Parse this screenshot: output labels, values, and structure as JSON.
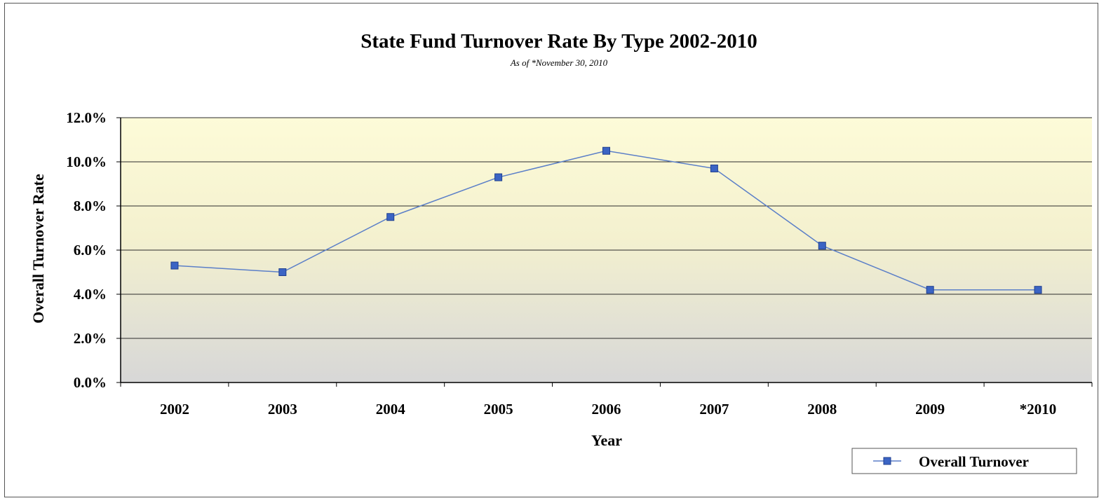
{
  "chart_data": {
    "type": "line",
    "title": "State Fund Turnover Rate By Type 2002-2010",
    "subtitle": "As of *November 30, 2010",
    "xlabel": "Year",
    "ylabel": "Overall Turnover Rate",
    "categories": [
      "2002",
      "2003",
      "2004",
      "2005",
      "2006",
      "2007",
      "2008",
      "2009",
      "*2010"
    ],
    "series": [
      {
        "name": "Overall Turnover",
        "values": [
          5.3,
          5.0,
          7.5,
          9.3,
          10.5,
          9.7,
          6.2,
          4.2,
          4.2
        ]
      }
    ],
    "ylim": [
      0,
      12
    ],
    "yticks": [
      0,
      2,
      4,
      6,
      8,
      10,
      12
    ],
    "ytick_labels": [
      "0.0%",
      "2.0%",
      "4.0%",
      "6.0%",
      "8.0%",
      "10.0%",
      "12.0%"
    ],
    "grid": true,
    "legend_position": "bottom-right",
    "colors": {
      "line": "#5b7fc8",
      "marker_fill": "#3b64c4",
      "marker_stroke": "#1f3f8f",
      "plot_bg_top": "#fdfbd8",
      "plot_bg_mid": "#f4f1cf",
      "plot_bg_bottom": "#d7d7d7",
      "gridline": "#2b2b2b"
    }
  }
}
